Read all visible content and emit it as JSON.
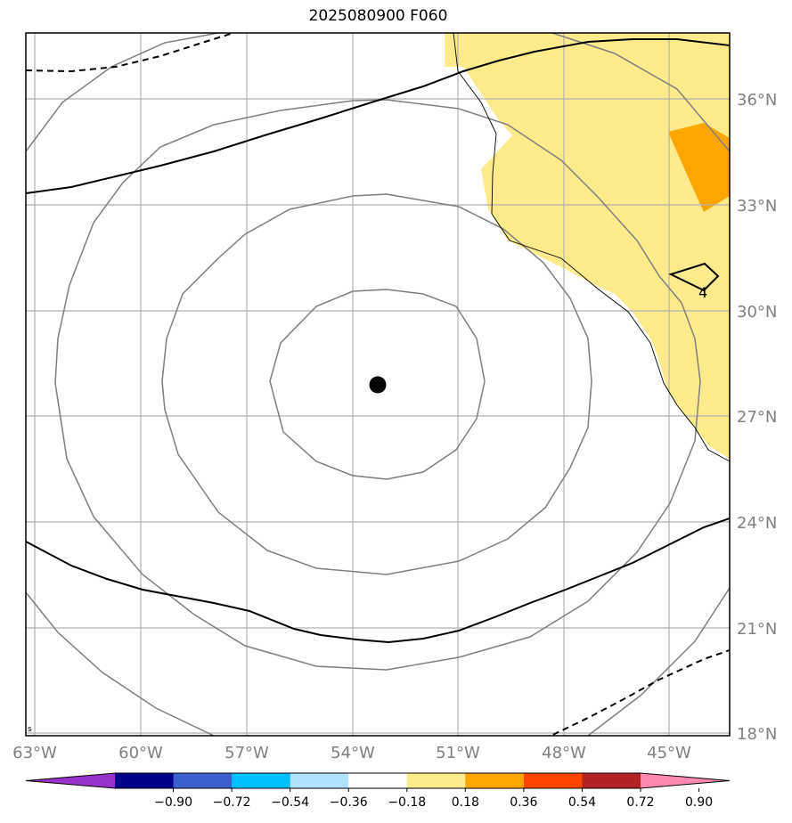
{
  "title": "2025080900 F060",
  "lon_ticks": [
    "63°W",
    "60°W",
    "57°W",
    "54°W",
    "51°W",
    "48°W",
    "45°W"
  ],
  "lat_ticks": [
    "36°N",
    "33°N",
    "30°N",
    "27°N",
    "24°N",
    "21°N",
    "18°N"
  ],
  "contour_label": "4",
  "colorbar": {
    "colors": [
      "#9932cc",
      "#00008b",
      "#3a5fcd",
      "#00bfff",
      "#b0e2ff",
      "#ffffff",
      "#ffeb8c",
      "#ffa500",
      "#ff4500",
      "#b22222",
      "#ff88b0"
    ],
    "tick_labels": [
      "−0.90",
      "−0.72",
      "−0.54",
      "−0.36",
      "−0.18",
      "0.18",
      "0.36",
      "0.54",
      "0.72",
      "0.90"
    ]
  },
  "shading_colors": {
    "light": "#ffeb8c",
    "strong": "#ffa500"
  },
  "marker": "storm-center"
}
